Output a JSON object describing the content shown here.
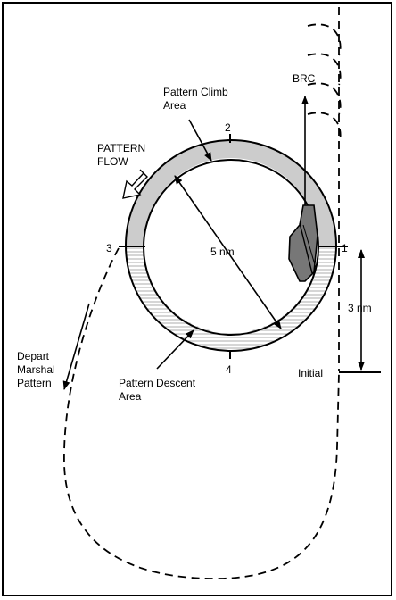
{
  "labels": {
    "pattern_climb_line1": "Pattern Climb",
    "pattern_climb_line2": "Area",
    "pattern_flow_line1": "PATTERN",
    "pattern_flow_line2": "FLOW",
    "brc": "BRC",
    "point_1": "1",
    "point_2": "2",
    "point_3": "3",
    "point_4": "4",
    "diameter": "5 nm",
    "distance": "3 nm",
    "initial": "Initial",
    "depart_line1": "Depart",
    "depart_line2": "Marshal",
    "depart_line3": "Pattern",
    "descent_line1": "Pattern Descent",
    "descent_line2": "Area"
  },
  "colors": {
    "climb_area_fill": "#cccccc",
    "ship_fill": "#777777",
    "stroke": "#000000",
    "hatch": "#999999"
  }
}
